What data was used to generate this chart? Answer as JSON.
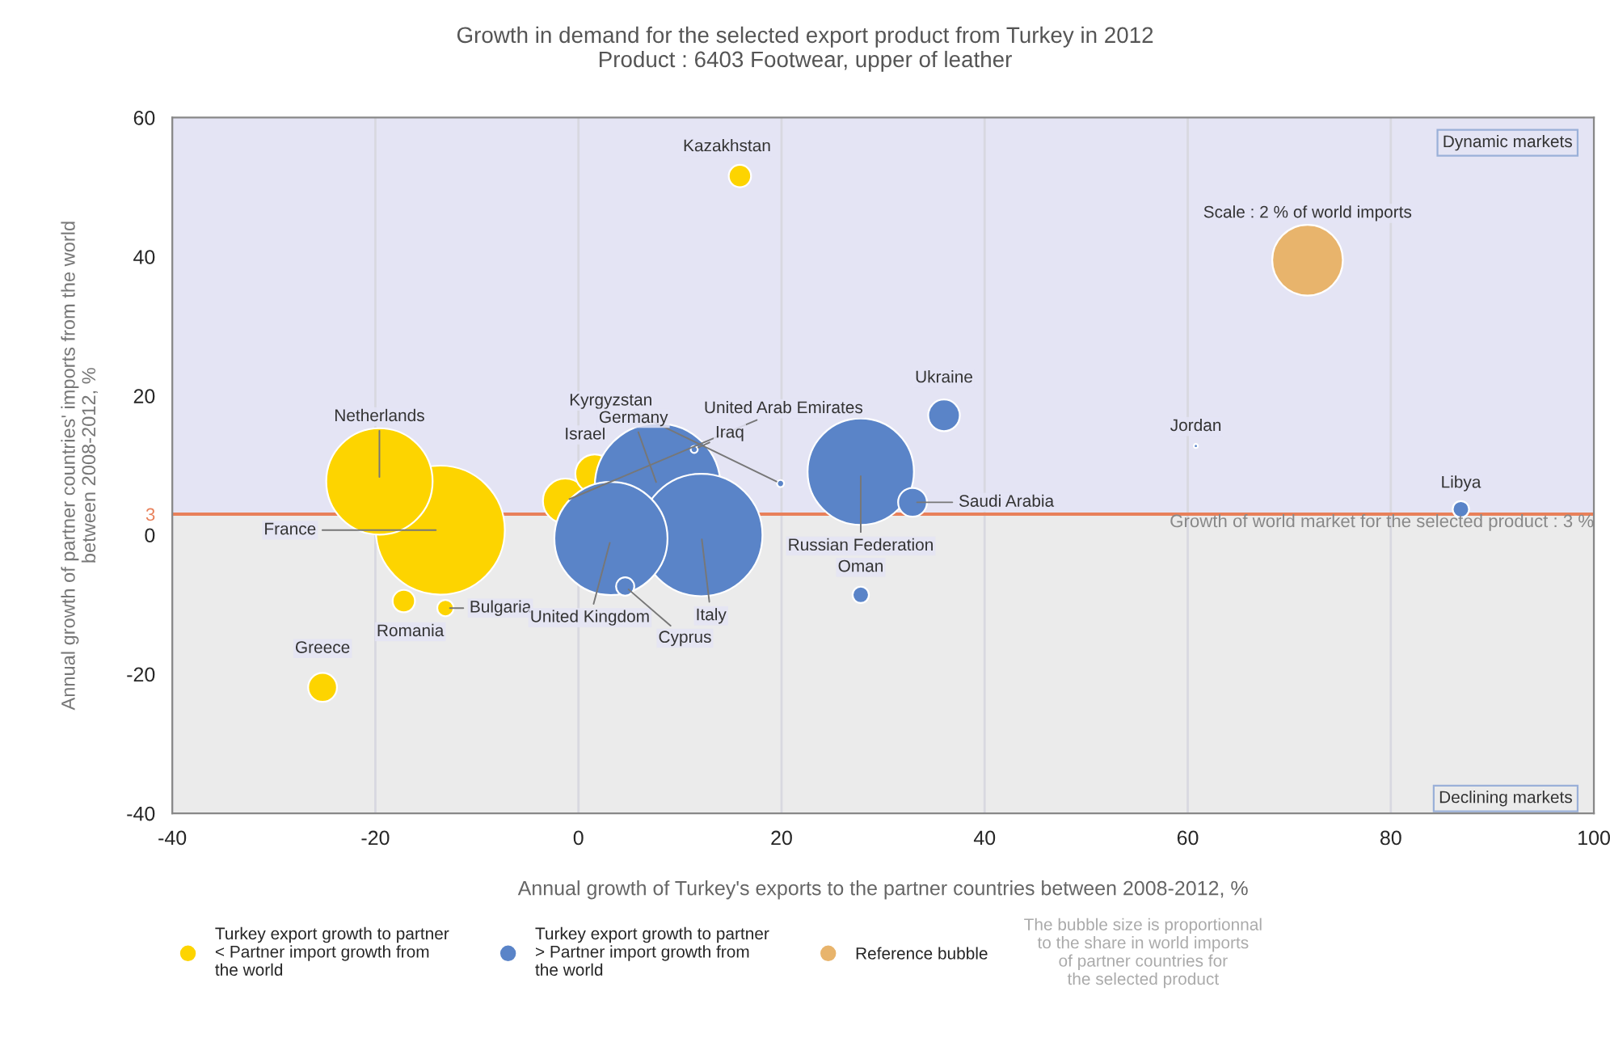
{
  "chart_data": {
    "type": "bubble",
    "title": "Growth in demand for the selected export product from Turkey in 2012",
    "subtitle": "Product : 6403 Footwear, upper of leather",
    "xlabel": "Annual growth of Turkey's exports to the partner countries between 2008-2012, %",
    "ylabel": "Annual growth of partner countries' imports from the world\nbetween 2008-2012, %",
    "xlim": [
      -40,
      100
    ],
    "xticks": [
      -40,
      -20,
      0,
      20,
      40,
      60,
      80,
      100
    ],
    "ylim": [
      -40,
      60
    ],
    "yticks": [
      -40,
      -20,
      0,
      {
        "value": 3,
        "label": "3"
      },
      20,
      40,
      60
    ],
    "grid": "x",
    "legend": "bottom",
    "series": [
      {
        "name": "Turkey export growth to partner\n< Partner import growth from\nthe world",
        "color": "#fdd400",
        "x": [
          15.9,
          -19.6,
          -13.6,
          -17.2,
          -13.1,
          -25.2,
          1.6,
          -1.3
        ],
        "values": [
          51.6,
          7.7,
          0.7,
          -9.5,
          -10.5,
          -21.9,
          8.8,
          4.9
        ],
        "sizes": [
          0.03,
          0.68,
          1,
          0.03,
          0.016,
          0.05,
          0.09,
          0.12
        ]
      },
      {
        "name": "Turkey export growth to partner\n> Partner import growth from\nthe world",
        "color": "#5a84c8",
        "x": [
          19.9,
          11.4,
          7.8,
          3.2,
          12.1,
          4.6,
          27.8,
          27.8,
          36.0,
          32.9,
          60.8,
          86.9
        ],
        "values": [
          7.4,
          12.3,
          7.0,
          -0.5,
          0,
          -7.4,
          9.1,
          -8.6,
          17.2,
          4.7,
          12.8,
          3.7
        ],
        "sizes": [
          0.003,
          0.003,
          0.95,
          0.77,
          0.9,
          0.02,
          0.68,
          0.016,
          0.06,
          0.05,
          0.001,
          0.016
        ]
      },
      {
        "name": "Reference bubble",
        "color": "#e8b46c",
        "x": [
          71.8
        ],
        "values": [
          39.5
        ],
        "sizes": [
          0.3
        ]
      }
    ],
    "ref_lines": [
      {
        "axis": "y",
        "value": 3,
        "label": "Growth of world market for the selected product : 3 %",
        "color": "#e8805a"
      }
    ],
    "bands": [
      {
        "axis": "y",
        "from": 3,
        "to": 60,
        "color": "#e4e4f4"
      },
      {
        "axis": "y",
        "from": -40,
        "to": 3,
        "color": "#ebebeb"
      }
    ],
    "annotations": [
      "Dynamic markets",
      "Declining markets",
      "The bubble size is proportionnal\nto the share in world imports\nof partner countries for\nthe selected product",
      {
        "text": "Kazakhstan",
        "x": 15.9,
        "y": 51.6
      },
      {
        "text": "Netherlands",
        "x": -19.6,
        "y": 7.7
      },
      {
        "text": "France",
        "x": -13.6,
        "y": 0.7
      },
      {
        "text": "Romania",
        "x": -17.2,
        "y": -9.5
      },
      {
        "text": "Bulgaria",
        "x": -13.1,
        "y": -10.5
      },
      {
        "text": "Greece",
        "x": -25.2,
        "y": -21.9
      },
      {
        "text": "Israel",
        "x": 1.6,
        "y": 8.8
      },
      {
        "text": "United Arab Emirates",
        "x": -1.3,
        "y": 4.9
      },
      {
        "text": "Kyrgyzstan",
        "x": 19.9,
        "y": 7.4
      },
      {
        "text": "Iraq",
        "x": 11.4,
        "y": 12.3
      },
      {
        "text": "Germany",
        "x": 7.8,
        "y": 7.0
      },
      {
        "text": "United Kingdom",
        "x": 3.2,
        "y": -0.5
      },
      {
        "text": "Italy",
        "x": 12.1,
        "y": 0
      },
      {
        "text": "Cyprus",
        "x": 4.6,
        "y": -7.4
      },
      {
        "text": "Russian Federation",
        "x": 27.8,
        "y": 9.1
      },
      {
        "text": "Oman",
        "x": 27.8,
        "y": -8.6
      },
      {
        "text": "Ukraine",
        "x": 36.0,
        "y": 17.2
      },
      {
        "text": "Saudi Arabia",
        "x": 32.9,
        "y": 4.7
      },
      {
        "text": "Jordan",
        "x": 60.8,
        "y": 12.8
      },
      {
        "text": "Libya",
        "x": 86.9,
        "y": 3.7
      },
      {
        "text": "Scale : 2 % of world imports",
        "x": 71.8,
        "y": 39.5
      }
    ]
  }
}
